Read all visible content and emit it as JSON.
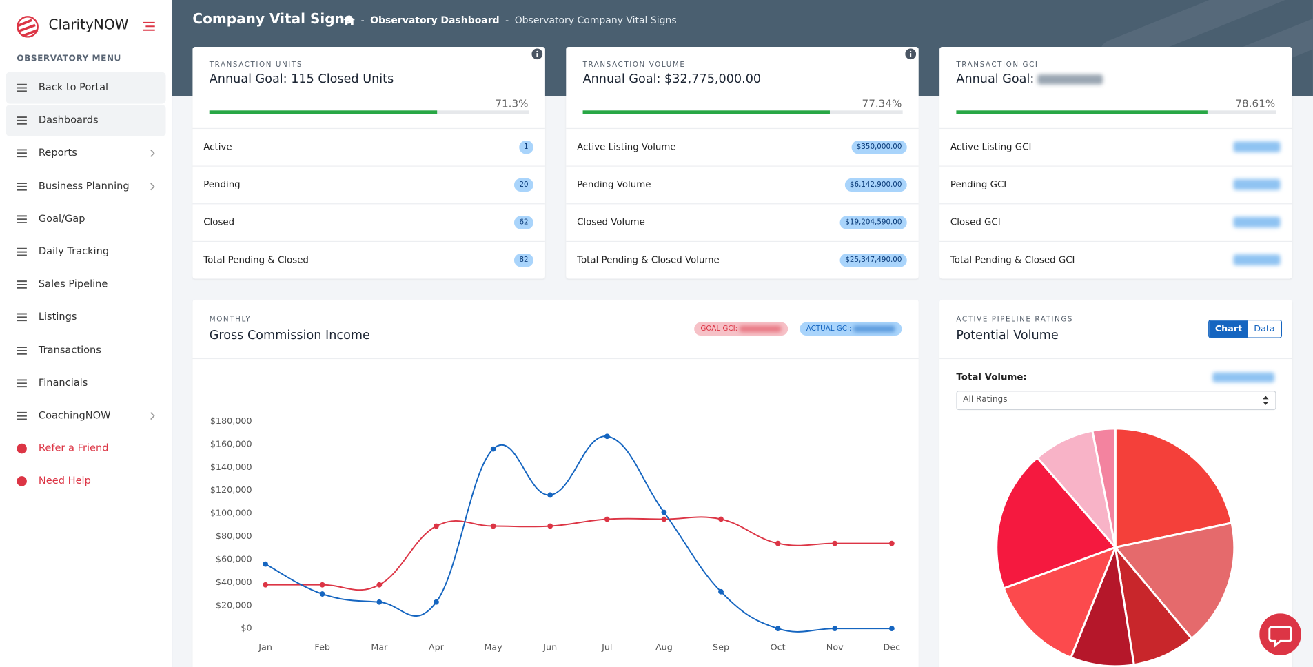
{
  "sidebar": {
    "brand": "ClarityNOW",
    "menu_title": "OBSERVATORY MENU",
    "items": [
      {
        "label": "Back to Portal",
        "highlight": true
      },
      {
        "label": "Dashboards",
        "highlight": true
      },
      {
        "label": "Reports",
        "submenu": true
      },
      {
        "label": "Business Planning",
        "submenu": true
      },
      {
        "label": "Goal/Gap"
      },
      {
        "label": "Daily Tracking"
      },
      {
        "label": "Sales Pipeline"
      },
      {
        "label": "Listings"
      },
      {
        "label": "Transactions"
      },
      {
        "label": "Financials"
      },
      {
        "label": "CoachingNOW",
        "submenu": true
      },
      {
        "label": "Refer a Friend",
        "color": "#dc3545"
      },
      {
        "label": "Need Help",
        "color": "#dc3545"
      }
    ]
  },
  "header": {
    "title": "Company Vital Signs",
    "breadcrumbs": [
      "Observatory Dashboard",
      "Observatory Company Vital Signs"
    ],
    "separator": "-"
  },
  "cards": [
    {
      "kicker": "TRANSACTION UNITS",
      "goal": "Annual Goal: 115 Closed Units",
      "info": true,
      "progress": 71.3,
      "progress_label": "71.3%",
      "rows": [
        {
          "label": "Active",
          "value": 1
        },
        {
          "label": "Pending",
          "value": 20
        },
        {
          "label": "Closed",
          "value": 62
        },
        {
          "label": "Total Pending & Closed",
          "value": 82
        }
      ]
    },
    {
      "kicker": "TRANSACTION VOLUME",
      "goal": "Annual Goal: $32,775,000.00",
      "info": true,
      "progress": 77.34,
      "progress_label": "77.34%",
      "rows": [
        {
          "label": "Active Listing Volume",
          "value": "$350,000.00"
        },
        {
          "label": "Pending Volume",
          "value": "$6,142,900.00"
        },
        {
          "label": "Closed Volume",
          "value": "$19,204,590.00"
        },
        {
          "label": "Total Pending & Closed Volume",
          "value": "$25,347,490.00"
        }
      ]
    },
    {
      "kicker": "TRANSACTION GCI",
      "goal": "Annual Goal:",
      "blurred": true,
      "progress": 78.61,
      "progress_label": "78.61%",
      "rows": [
        {
          "label": "Active Listing GCI"
        },
        {
          "label": "Pending GCI"
        },
        {
          "label": "Closed GCI"
        },
        {
          "label": "Total Pending & Closed GCI"
        }
      ]
    }
  ],
  "chart_data": [
    {
      "type": "line",
      "kicker": "MONTHLY",
      "title": "Gross Commission Income",
      "smooth": true,
      "categories": [
        "Jan",
        "Feb",
        "Mar",
        "Apr",
        "May",
        "Jun",
        "Jul",
        "Aug",
        "Sep",
        "Oct",
        "Nov",
        "Dec"
      ],
      "series": [
        {
          "name": "GOAL GCI:",
          "color": "#dc3545",
          "values": [
            38000,
            38000,
            38000,
            89000,
            89000,
            89000,
            95000,
            95000,
            95000,
            74000,
            74000,
            74000
          ]
        },
        {
          "name": "ACTUAL GCI:",
          "color": "#1565c0",
          "values": [
            56000,
            30000,
            23000,
            23000,
            156000,
            116000,
            167000,
            101000,
            32000,
            0,
            0,
            0
          ]
        }
      ],
      "ylim": [
        0,
        180000
      ],
      "yticks": [
        {
          "value": 0,
          "label": "$0"
        },
        {
          "value": 20000,
          "label": "$20,000"
        },
        {
          "value": 40000,
          "label": "$40,000"
        },
        {
          "value": 60000,
          "label": "$60,000"
        },
        {
          "value": 80000,
          "label": "$80,000"
        },
        {
          "value": 100000,
          "label": "$100,000"
        },
        {
          "value": 120000,
          "label": "$120,000"
        },
        {
          "value": 140000,
          "label": "$140,000"
        },
        {
          "value": 160000,
          "label": "$160,000"
        },
        {
          "value": 180000,
          "label": "$180,000"
        }
      ]
    },
    {
      "type": "pie",
      "kicker": "ACTIVE PIPELINE RATINGS",
      "title": "Potential Volume",
      "tabs": [
        "Chart",
        "Data"
      ],
      "active_tab": 0,
      "total_label": "Total Volume:",
      "filter": "All Ratings",
      "values": [
        21.7,
        17.2,
        8.6,
        8.6,
        13.3,
        19.2,
        8.3,
        3.1
      ],
      "colors": [
        "#f4403a",
        "#e56a6c",
        "#c8262b",
        "#b5172a",
        "#fc4a4d",
        "#f5193f",
        "#f8b3c7",
        "#f3839f"
      ]
    }
  ]
}
